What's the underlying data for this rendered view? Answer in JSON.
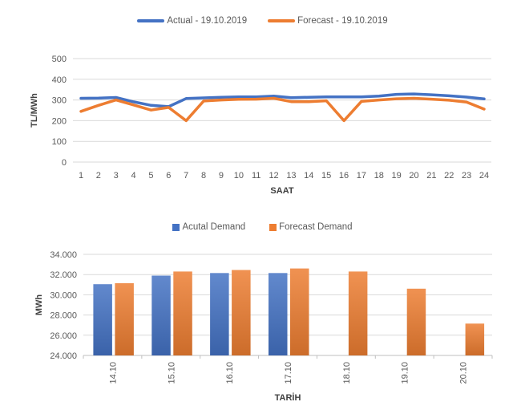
{
  "colors": {
    "actual": "#4472C4",
    "forecast": "#ED7D31",
    "gridline": "#D9D9D9",
    "axis_line": "#BFBFBF",
    "tick_text": "#595959",
    "axis_title_text": "#404040"
  },
  "chart_data": [
    {
      "type": "line",
      "title": "",
      "x": [
        1,
        2,
        3,
        4,
        5,
        6,
        7,
        8,
        9,
        10,
        11,
        12,
        13,
        14,
        15,
        16,
        17,
        18,
        19,
        20,
        21,
        22,
        23,
        24
      ],
      "series": [
        {
          "name": "Actual - 19.10.2019",
          "color": "#4472C4",
          "values": [
            308,
            309,
            312,
            291,
            274,
            268,
            307,
            310,
            313,
            315,
            315,
            319,
            311,
            313,
            315,
            315,
            315,
            319,
            327,
            329,
            325,
            320,
            314,
            305
          ]
        },
        {
          "name": "Forecast - 19.10.2019",
          "color": "#ED7D31",
          "values": [
            245,
            274,
            300,
            276,
            251,
            264,
            200,
            295,
            300,
            303,
            304,
            308,
            292,
            292,
            296,
            200,
            293,
            300,
            306,
            308,
            304,
            299,
            290,
            256
          ]
        }
      ],
      "xlabel": "SAAT",
      "ylabel": "TL/MWh",
      "ylim": [
        0,
        500
      ],
      "ytick_step": 100,
      "grid": "horizontal-only",
      "legend_position": "top"
    },
    {
      "type": "bar",
      "title": "",
      "categories": [
        "14.10",
        "15.10",
        "16.10",
        "17.10",
        "18.10",
        "19.10",
        "20.10"
      ],
      "series": [
        {
          "name": "Acutal Demand",
          "color": "#4472C4",
          "values": [
            31050,
            31900,
            32150,
            32150,
            null,
            null,
            null
          ]
        },
        {
          "name": "Forecast Demand",
          "color": "#ED7D31",
          "values": [
            31150,
            32300,
            32450,
            32600,
            32300,
            30600,
            27150
          ]
        }
      ],
      "xlabel": "TARİH",
      "ylabel": "MWh",
      "ylim": [
        24000,
        34000
      ],
      "ytick_step": 2000,
      "ytick_labels": [
        "24.000",
        "26.000",
        "28.000",
        "30.000",
        "32.000",
        "34.000"
      ],
      "grid": "horizontal-only",
      "legend_position": "top",
      "xtick_rotation": -90
    }
  ]
}
